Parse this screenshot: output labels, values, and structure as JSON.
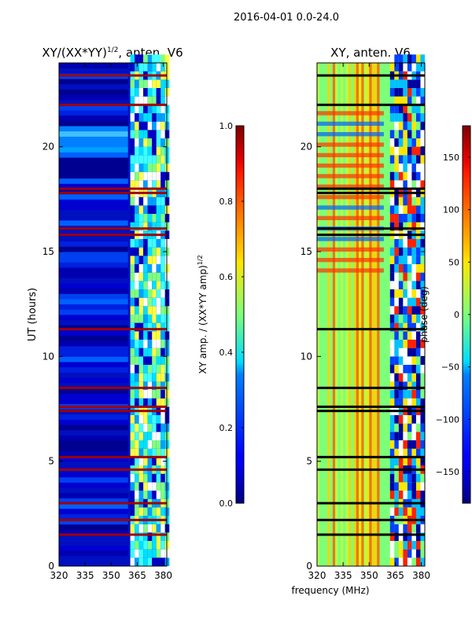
{
  "figure": {
    "suptitle": "2016-04-01 0.0-24.0"
  },
  "chart_data": [
    {
      "type": "heatmap",
      "title_prefix": "XY/(XX*YY)",
      "title_sup": "1/2",
      "title_suffix": ", anten. V6",
      "xlabel": "",
      "ylabel": "UT (hours)",
      "xlim": [
        320,
        382
      ],
      "ylim": [
        0,
        24
      ],
      "xticks": [
        320,
        335,
        350,
        365,
        380
      ],
      "yticks": [
        0,
        5,
        10,
        15,
        20
      ],
      "colorbar": {
        "label_prefix": "XY amp. / (XX*YY amp)",
        "label_sup": "1/2",
        "vmin": 0.0,
        "vmax": 1.0,
        "ticks": [
          "0.0",
          "0.2",
          "0.4",
          "0.6",
          "0.8",
          "1.0"
        ],
        "tick_values": [
          0.0,
          0.2,
          0.4,
          0.6,
          0.8,
          1.0
        ],
        "cmap": "jet"
      },
      "flagged_rows_hours": [
        1.5,
        2.2,
        3.0,
        4.6,
        5.2,
        7.4,
        7.6,
        8.5,
        11.3,
        15.8,
        16.1,
        17.8,
        18.0,
        22.0,
        23.4
      ]
    },
    {
      "type": "heatmap",
      "title": "XY, anten. V6",
      "xlabel": "frequency (MHz)",
      "ylabel": "",
      "xlim": [
        320,
        382
      ],
      "ylim": [
        0,
        24
      ],
      "xticks": [
        320,
        335,
        350,
        365,
        380
      ],
      "yticks": [
        0,
        5,
        10,
        15,
        20
      ],
      "colorbar": {
        "label": "phase (deg)",
        "vmin": -180,
        "vmax": 180,
        "ticks": [
          "150",
          "100",
          "50",
          "0",
          "−50",
          "−100",
          "−150"
        ],
        "tick_values": [
          150,
          100,
          50,
          0,
          -50,
          -100,
          -150
        ],
        "cmap": "jet"
      },
      "flagged_rows_hours": [
        1.5,
        2.2,
        3.0,
        4.6,
        5.2,
        7.4,
        7.6,
        8.5,
        11.3,
        15.8,
        16.1,
        17.8,
        18.0,
        22.0,
        23.4
      ]
    }
  ]
}
